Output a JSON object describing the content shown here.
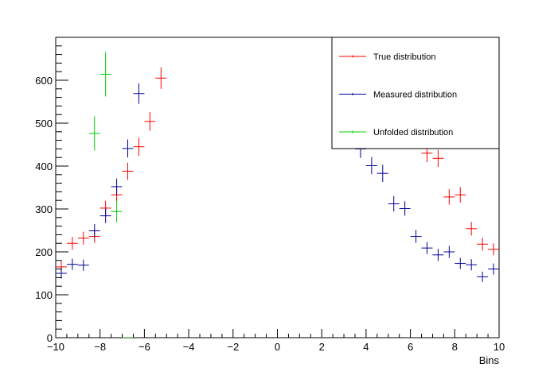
{
  "chart_data": {
    "type": "scatter",
    "xlabel": "Bins",
    "ylabel": "",
    "xlim": [
      -10,
      10
    ],
    "ylim": [
      0,
      700
    ],
    "x_ticks": [
      "−10",
      "−8",
      "−6",
      "−4",
      "−2",
      "0",
      "2",
      "4",
      "6",
      "8",
      "10"
    ],
    "y_ticks": [
      "0",
      "100",
      "200",
      "300",
      "400",
      "500",
      "600"
    ],
    "legend_position": "top-right",
    "grid": false,
    "bin_width": 0.5,
    "series": [
      {
        "name": "True distribution",
        "color": "#ff0000",
        "points": [
          {
            "x": -9.75,
            "y": 165,
            "err": 13
          },
          {
            "x": -9.25,
            "y": 220,
            "err": 15
          },
          {
            "x": -8.75,
            "y": 232,
            "err": 15
          },
          {
            "x": -8.25,
            "y": 236,
            "err": 15
          },
          {
            "x": -7.75,
            "y": 302,
            "err": 17
          },
          {
            "x": -7.25,
            "y": 333,
            "err": 18
          },
          {
            "x": -6.75,
            "y": 388,
            "err": 20
          },
          {
            "x": -6.25,
            "y": 445,
            "err": 21
          },
          {
            "x": -5.75,
            "y": 504,
            "err": 22
          },
          {
            "x": -5.25,
            "y": 605,
            "err": 25
          },
          {
            "x": 6.75,
            "y": 430,
            "err": 21
          },
          {
            "x": 7.25,
            "y": 418,
            "err": 20
          },
          {
            "x": 7.75,
            "y": 328,
            "err": 18
          },
          {
            "x": 8.25,
            "y": 333,
            "err": 18
          },
          {
            "x": 8.75,
            "y": 254,
            "err": 16
          },
          {
            "x": 9.25,
            "y": 218,
            "err": 15
          },
          {
            "x": 9.75,
            "y": 206,
            "err": 14
          }
        ]
      },
      {
        "name": "Measured distribution",
        "color": "#000099",
        "points": [
          {
            "x": -9.75,
            "y": 150,
            "err": 12
          },
          {
            "x": -9.25,
            "y": 171,
            "err": 13
          },
          {
            "x": -8.75,
            "y": 169,
            "err": 13
          },
          {
            "x": -8.25,
            "y": 249,
            "err": 16
          },
          {
            "x": -7.75,
            "y": 284,
            "err": 17
          },
          {
            "x": -7.25,
            "y": 352,
            "err": 19
          },
          {
            "x": -6.75,
            "y": 441,
            "err": 21
          },
          {
            "x": -6.25,
            "y": 569,
            "err": 24
          },
          {
            "x": 3.75,
            "y": 440,
            "err": 21
          },
          {
            "x": 4.25,
            "y": 401,
            "err": 20
          },
          {
            "x": 4.75,
            "y": 383,
            "err": 20
          },
          {
            "x": 5.25,
            "y": 312,
            "err": 18
          },
          {
            "x": 5.75,
            "y": 301,
            "err": 17
          },
          {
            "x": 6.25,
            "y": 236,
            "err": 15
          },
          {
            "x": 6.75,
            "y": 209,
            "err": 14
          },
          {
            "x": 7.25,
            "y": 193,
            "err": 14
          },
          {
            "x": 7.75,
            "y": 200,
            "err": 14
          },
          {
            "x": 8.25,
            "y": 173,
            "err": 13
          },
          {
            "x": 8.75,
            "y": 170,
            "err": 13
          },
          {
            "x": 9.25,
            "y": 142,
            "err": 12
          },
          {
            "x": 9.75,
            "y": 160,
            "err": 13
          }
        ]
      },
      {
        "name": "Unfolded distribution",
        "color": "#00cc00",
        "points": [
          {
            "x": -8.25,
            "y": 476,
            "err": 40
          },
          {
            "x": -7.75,
            "y": 614,
            "err": 52
          },
          {
            "x": -7.25,
            "y": 294,
            "err": 25
          },
          {
            "x": -6.75,
            "y": 0,
            "err": 0
          }
        ]
      }
    ]
  }
}
